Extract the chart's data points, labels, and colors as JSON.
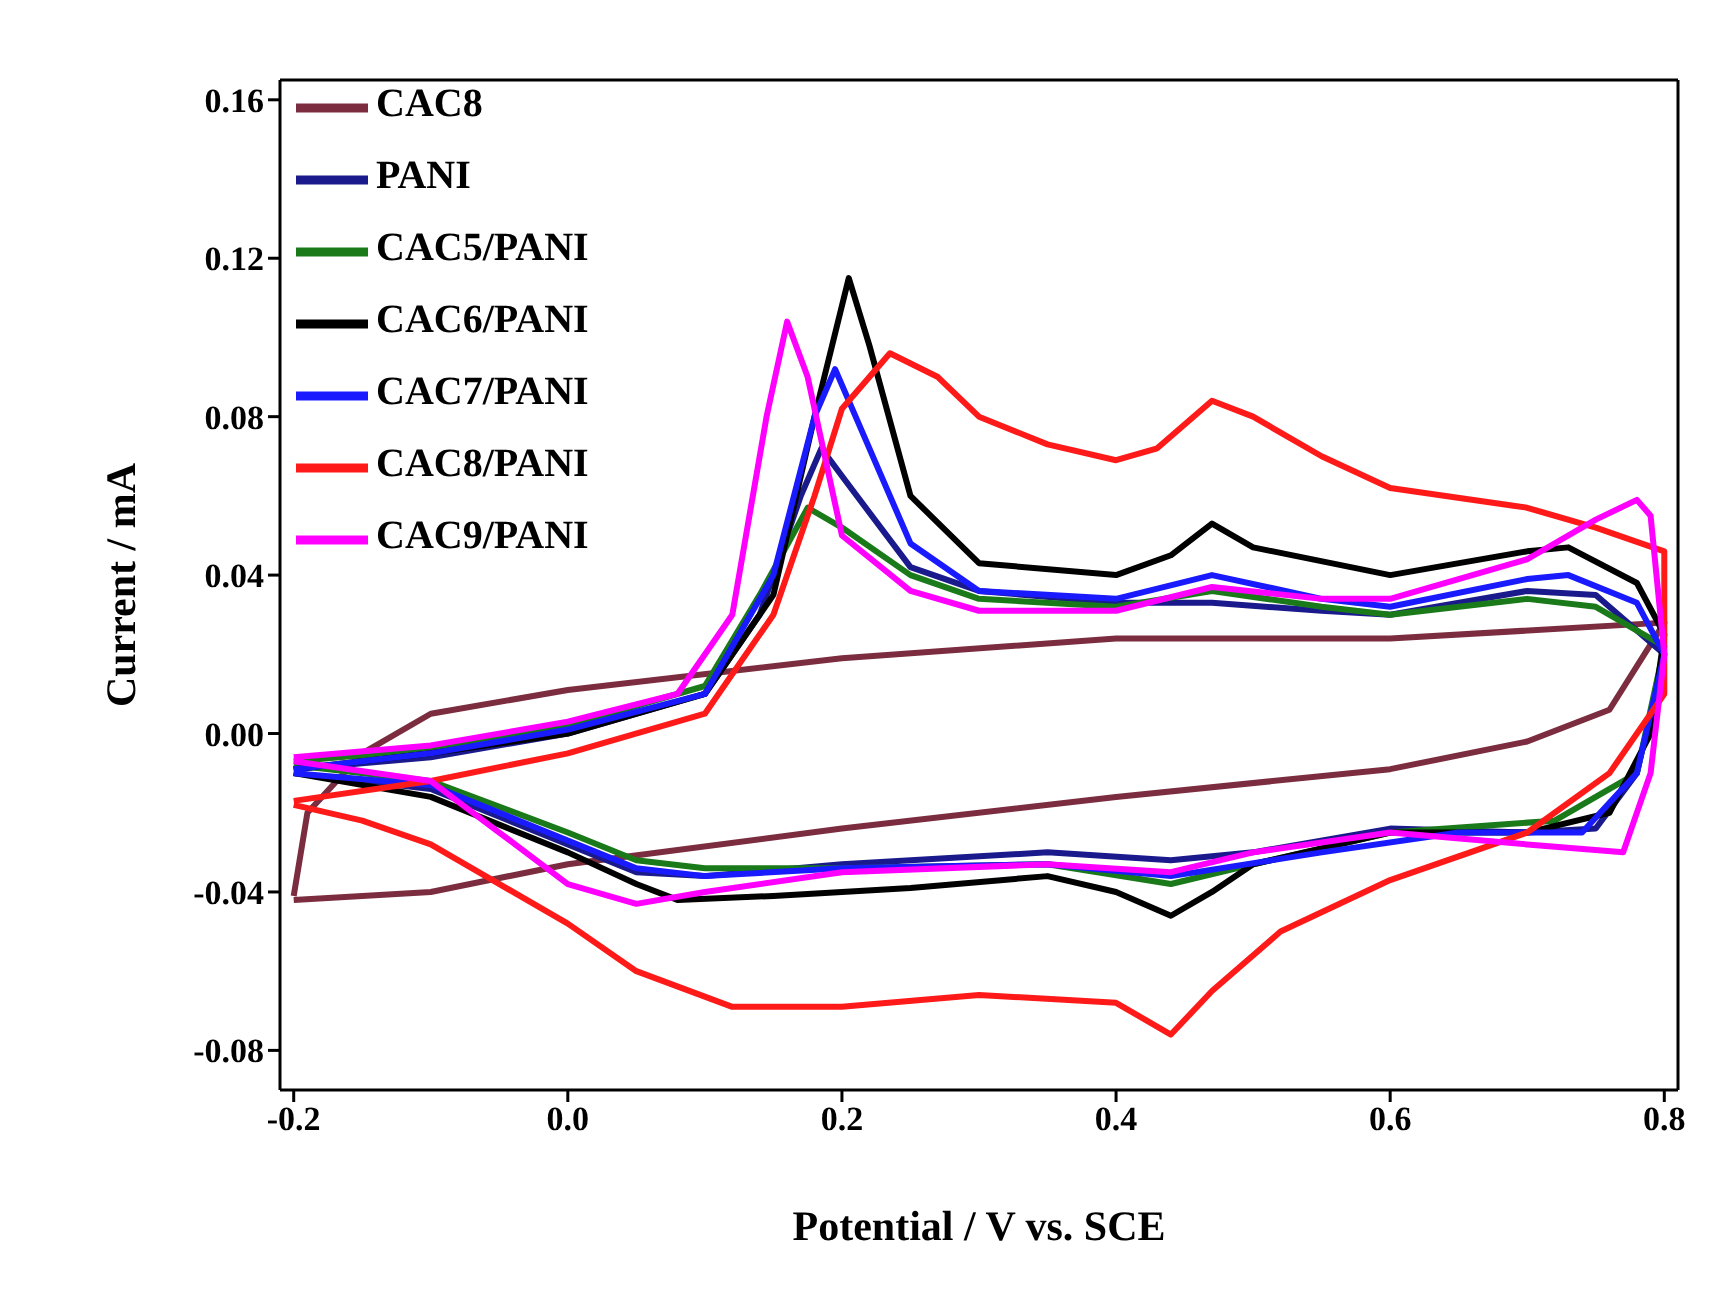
{
  "chart_data": {
    "type": "line",
    "xlabel": "Potential / V vs. SCE",
    "ylabel": "Current / mA",
    "xlim": [
      -0.21,
      0.81
    ],
    "ylim": [
      -0.09,
      0.165
    ],
    "xticks": [
      -0.2,
      {
        "value": 0,
        "label": "0.0"
      },
      0.2,
      0.4,
      0.6,
      0.8
    ],
    "yticks": [
      -0.08,
      -0.04,
      {
        "value": 0,
        "label": "0.00"
      },
      0.04,
      0.08,
      0.12,
      0.16
    ],
    "legend": "top left",
    "series": [
      {
        "name": "CAC8",
        "color": "#7b2d3f",
        "x": [
          -0.2,
          -0.1,
          0,
          0.2,
          0.4,
          0.6,
          0.7,
          0.76,
          0.8,
          0.6,
          0.4,
          0.2,
          0,
          -0.1,
          -0.15,
          -0.19,
          -0.2
        ],
        "values": [
          -0.042,
          -0.04,
          -0.033,
          -0.024,
          -0.016,
          -0.009,
          -0.002,
          0.006,
          0.028,
          0.024,
          0.024,
          0.019,
          0.011,
          0.005,
          -0.005,
          -0.02,
          -0.041
        ]
      },
      {
        "name": "PANI",
        "color": "#1a1a8c",
        "x": [
          -0.2,
          -0.1,
          0,
          0.1,
          0.14,
          0.17,
          0.185,
          0.2,
          0.25,
          0.3,
          0.4,
          0.47,
          0.55,
          0.6,
          0.7,
          0.75,
          0.8,
          0.78,
          0.75,
          0.7,
          0.6,
          0.5,
          0.44,
          0.35,
          0.2,
          0.1,
          0.05,
          0,
          -0.1,
          -0.2
        ],
        "values": [
          -0.009,
          -0.006,
          0,
          0.01,
          0.03,
          0.06,
          0.072,
          0.065,
          0.042,
          0.036,
          0.033,
          0.033,
          0.031,
          0.03,
          0.036,
          0.035,
          0.02,
          -0.01,
          -0.024,
          -0.025,
          -0.024,
          -0.03,
          -0.032,
          -0.03,
          -0.033,
          -0.036,
          -0.035,
          -0.028,
          -0.014,
          -0.01
        ]
      },
      {
        "name": "CAC5/PANI",
        "color": "#1a7a1a",
        "x": [
          -0.2,
          -0.1,
          0,
          0.1,
          0.14,
          0.175,
          0.2,
          0.25,
          0.3,
          0.4,
          0.47,
          0.55,
          0.6,
          0.7,
          0.75,
          0.8,
          0.78,
          0.72,
          0.6,
          0.5,
          0.44,
          0.35,
          0.2,
          0.1,
          0.05,
          0,
          -0.1,
          -0.2
        ],
        "values": [
          -0.007,
          -0.004,
          0.002,
          0.012,
          0.035,
          0.057,
          0.052,
          0.04,
          0.034,
          0.032,
          0.036,
          0.032,
          0.03,
          0.034,
          0.032,
          0.022,
          -0.01,
          -0.022,
          -0.025,
          -0.033,
          -0.038,
          -0.033,
          -0.034,
          -0.034,
          -0.032,
          -0.025,
          -0.012,
          -0.008
        ]
      },
      {
        "name": "CAC6/PANI",
        "color": "#000000",
        "x": [
          -0.2,
          -0.1,
          0,
          0.1,
          0.15,
          0.18,
          0.205,
          0.22,
          0.25,
          0.3,
          0.4,
          0.44,
          0.47,
          0.5,
          0.6,
          0.7,
          0.73,
          0.78,
          0.8,
          0.79,
          0.76,
          0.7,
          0.6,
          0.5,
          0.47,
          0.44,
          0.4,
          0.35,
          0.25,
          0.15,
          0.08,
          0.05,
          0,
          -0.1,
          -0.2
        ],
        "values": [
          -0.009,
          -0.005,
          0,
          0.01,
          0.035,
          0.08,
          0.115,
          0.098,
          0.06,
          0.043,
          0.04,
          0.045,
          0.053,
          0.047,
          0.04,
          0.046,
          0.047,
          0.038,
          0.025,
          0,
          -0.02,
          -0.025,
          -0.025,
          -0.033,
          -0.04,
          -0.046,
          -0.04,
          -0.036,
          -0.039,
          -0.041,
          -0.042,
          -0.038,
          -0.03,
          -0.016,
          -0.01
        ]
      },
      {
        "name": "CAC7/PANI",
        "color": "#1a1aff",
        "x": [
          -0.2,
          -0.1,
          0,
          0.1,
          0.15,
          0.18,
          0.195,
          0.21,
          0.25,
          0.3,
          0.4,
          0.47,
          0.55,
          0.6,
          0.7,
          0.73,
          0.78,
          0.8,
          0.78,
          0.74,
          0.65,
          0.55,
          0.44,
          0.35,
          0.2,
          0.1,
          0.05,
          0,
          -0.1,
          -0.2
        ],
        "values": [
          -0.009,
          -0.005,
          0.001,
          0.01,
          0.04,
          0.08,
          0.092,
          0.08,
          0.048,
          0.036,
          0.034,
          0.04,
          0.034,
          0.032,
          0.039,
          0.04,
          0.033,
          0.02,
          -0.01,
          -0.025,
          -0.025,
          -0.03,
          -0.036,
          -0.033,
          -0.034,
          -0.036,
          -0.034,
          -0.027,
          -0.013,
          -0.01
        ]
      },
      {
        "name": "CAC8/PANI",
        "color": "#ff1a1a",
        "x": [
          -0.2,
          -0.1,
          0,
          0.1,
          0.15,
          0.18,
          0.2,
          0.235,
          0.27,
          0.3,
          0.35,
          0.4,
          0.43,
          0.47,
          0.5,
          0.55,
          0.6,
          0.7,
          0.75,
          0.8,
          0.8,
          0.76,
          0.7,
          0.6,
          0.52,
          0.47,
          0.44,
          0.4,
          0.3,
          0.2,
          0.12,
          0.05,
          0,
          -0.1,
          -0.15,
          -0.2
        ],
        "values": [
          -0.017,
          -0.012,
          -0.005,
          0.005,
          0.03,
          0.06,
          0.082,
          0.096,
          0.09,
          0.08,
          0.073,
          0.069,
          0.072,
          0.084,
          0.08,
          0.07,
          0.062,
          0.057,
          0.052,
          0.046,
          0.01,
          -0.01,
          -0.025,
          -0.037,
          -0.05,
          -0.065,
          -0.076,
          -0.068,
          -0.066,
          -0.069,
          -0.069,
          -0.06,
          -0.048,
          -0.028,
          -0.022,
          -0.018
        ]
      },
      {
        "name": "CAC9/PANI",
        "color": "#ff00ff",
        "x": [
          -0.2,
          -0.1,
          0,
          0.08,
          0.12,
          0.145,
          0.16,
          0.175,
          0.2,
          0.25,
          0.3,
          0.4,
          0.47,
          0.55,
          0.6,
          0.7,
          0.75,
          0.78,
          0.79,
          0.8,
          0.79,
          0.77,
          0.7,
          0.6,
          0.5,
          0.44,
          0.35,
          0.2,
          0.1,
          0.05,
          0,
          -0.05,
          -0.1,
          -0.2
        ],
        "values": [
          -0.006,
          -0.003,
          0.003,
          0.01,
          0.03,
          0.08,
          0.104,
          0.09,
          0.05,
          0.036,
          0.031,
          0.031,
          0.037,
          0.034,
          0.034,
          0.044,
          0.054,
          0.059,
          0.055,
          0.02,
          -0.01,
          -0.03,
          -0.028,
          -0.025,
          -0.03,
          -0.035,
          -0.033,
          -0.035,
          -0.04,
          -0.043,
          -0.038,
          -0.025,
          -0.012,
          -0.007
        ]
      }
    ]
  }
}
